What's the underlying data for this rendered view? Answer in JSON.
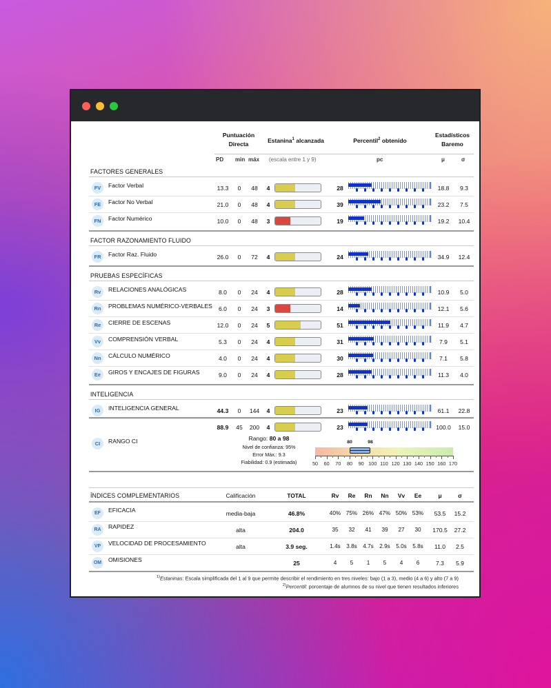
{
  "window": {
    "controls": [
      "close",
      "minimize",
      "maximize"
    ]
  },
  "header": {
    "puntuacion": "Puntuación Directa",
    "estanina": "Estanina",
    "estanina_sup": "1",
    "estanina_rest": " alcanzada",
    "percentil": "Percentil",
    "percentil_sup": "2",
    "percentil_rest": " obtenido",
    "estadisticos": "Estadísticos Baremo",
    "pd": "PD",
    "min": "min",
    "max": "máx",
    "escala": "(escala entre 1 y 9)",
    "pc": "pc",
    "mu": "μ",
    "sigma": "σ"
  },
  "sections": [
    {
      "title": "FACTORES GENERALES",
      "rows": [
        {
          "code": "FV",
          "label": "Factor Verbal",
          "pd": "13.3",
          "min": "0",
          "max": "48",
          "estanina": 4,
          "color": "#d8cd4c",
          "pc": 28,
          "mu": "18.8",
          "sigma": "9.3"
        },
        {
          "code": "FE",
          "label": "Factor No Verbal",
          "pd": "21.0",
          "min": "0",
          "max": "48",
          "estanina": 4,
          "color": "#d8cd4c",
          "pc": 39,
          "mu": "23.2",
          "sigma": "7.5"
        },
        {
          "code": "FN",
          "label": "Factor Numérico",
          "pd": "10.0",
          "min": "0",
          "max": "48",
          "estanina": 3,
          "color": "#d9473f",
          "pc": 19,
          "mu": "19.2",
          "sigma": "10.4"
        }
      ]
    },
    {
      "title": "FACTOR RAZONAMIENTO FLUIDO",
      "rows": [
        {
          "code": "FR",
          "label": "Factor Raz. Fluido",
          "pd": "26.0",
          "min": "0",
          "max": "72",
          "estanina": 4,
          "color": "#d8cd4c",
          "pc": 24,
          "mu": "34.9",
          "sigma": "12.4"
        }
      ]
    },
    {
      "title": "PRUEBAS ESPECÍFICAS",
      "rows": [
        {
          "code": "Rv",
          "label": "RELACIONES ANALÓGICAS",
          "pd": "8.0",
          "min": "0",
          "max": "24",
          "estanina": 4,
          "color": "#d8cd4c",
          "pc": 28,
          "mu": "10.9",
          "sigma": "5.0"
        },
        {
          "code": "Rn",
          "label": "PROBLEMAS NUMÉRICO-VERBALES",
          "pd": "6.0",
          "min": "0",
          "max": "24",
          "estanina": 3,
          "color": "#d9473f",
          "pc": 14,
          "mu": "12.1",
          "sigma": "5.6"
        },
        {
          "code": "Re",
          "label": "CIERRE DE ESCENAS",
          "pd": "12.0",
          "min": "0",
          "max": "24",
          "estanina": 5,
          "color": "#d8cd4c",
          "pc": 51,
          "mu": "11.9",
          "sigma": "4.7"
        },
        {
          "code": "Vv",
          "label": "COMPRENSIÓN VERBAL",
          "pd": "5.3",
          "min": "0",
          "max": "24",
          "estanina": 4,
          "color": "#d8cd4c",
          "pc": 31,
          "mu": "7.9",
          "sigma": "5.1"
        },
        {
          "code": "Nn",
          "label": "CÁLCULO NUMÉRICO",
          "pd": "4.0",
          "min": "0",
          "max": "24",
          "estanina": 4,
          "color": "#d8cd4c",
          "pc": 30,
          "mu": "7.1",
          "sigma": "5.8"
        },
        {
          "code": "Ee",
          "label": "GIROS Y ENCAJES DE FIGURAS",
          "pd": "9.0",
          "min": "0",
          "max": "24",
          "estanina": 4,
          "color": "#d8cd4c",
          "pc": 28,
          "mu": "11.3",
          "sigma": "4.0"
        }
      ]
    },
    {
      "title": "INTELIGENCIA",
      "rows": [
        {
          "code": "IG",
          "label": "INTELIGENCIA GENERAL",
          "pd": "44.3",
          "min": "0",
          "max": "144",
          "estanina": 4,
          "color": "#d8cd4c",
          "pc": 23,
          "mu": "61.1",
          "sigma": "22.8",
          "pd_bold": true
        },
        {
          "code": "",
          "label": "",
          "pd": "88.9",
          "min": "45",
          "max": "200",
          "estanina": 4,
          "color": "#d8cd4c",
          "pc": 23,
          "mu": "100.0",
          "sigma": "15.0",
          "pd_bold": true
        }
      ]
    }
  ],
  "ci": {
    "code": "CI",
    "label": "RANGO CI",
    "rango_prefix": "Rango: ",
    "rango_value": "80 a 98",
    "confianza": "Nivel de confianza: 95%",
    "error": "Error Máx.: 9.3",
    "fiabilidad": "Fiabilidad: 0.9 (estimada)",
    "low": 80,
    "high": 98,
    "low_label": "80",
    "high_label": "98",
    "scale": [
      50,
      60,
      70,
      80,
      90,
      100,
      110,
      120,
      130,
      140,
      150,
      160,
      170
    ]
  },
  "indices": {
    "title": "ÍNDICES COMPLEMENTARIOS",
    "cols": [
      "Calificación",
      "TOTAL",
      "Rv",
      "Re",
      "Rn",
      "Nn",
      "Vv",
      "Ee",
      "μ",
      "σ"
    ],
    "rows": [
      {
        "code": "EF",
        "label": "EFICACIA",
        "calif": "media-baja",
        "total": "46.8%",
        "vals": [
          "40%",
          "75%",
          "26%",
          "47%",
          "50%",
          "53%"
        ],
        "mu": "53.5",
        "sigma": "15.2"
      },
      {
        "code": "RA",
        "label": "RAPIDEZ",
        "calif": "alta",
        "total": "204.0",
        "vals": [
          "35",
          "32",
          "41",
          "39",
          "27",
          "30"
        ],
        "mu": "170.5",
        "sigma": "27.2"
      },
      {
        "code": "VP",
        "label": "VELOCIDAD DE PROCESAMIENTO",
        "calif": "alta",
        "total": "3.9 seg.",
        "vals": [
          "1.4s",
          "3.8s",
          "4.7s",
          "2.9s",
          "5.0s",
          "5.8s"
        ],
        "mu": "11.0",
        "sigma": "2.5"
      },
      {
        "code": "OM",
        "label": "OMISIONES",
        "calif": "",
        "total": "25",
        "vals": [
          "4",
          "5",
          "1",
          "5",
          "4",
          "6"
        ],
        "mu": "7.3",
        "sigma": "5.9"
      }
    ]
  },
  "footnotes": {
    "f1_sup": "1)",
    "f1_em": "Estaninas",
    "f1_rest": ": Escala simplificada del 1 al 9 que permite describir el rendimiento en tres niveles: bajo (1 a 3), medio (4 a 6) y alto (7 a 9)",
    "f2_sup": "2)",
    "f2_em": "Percentil",
    "f2_rest": ": porcentaje de alumnos de su nivel que tienen resultados inferiores"
  }
}
